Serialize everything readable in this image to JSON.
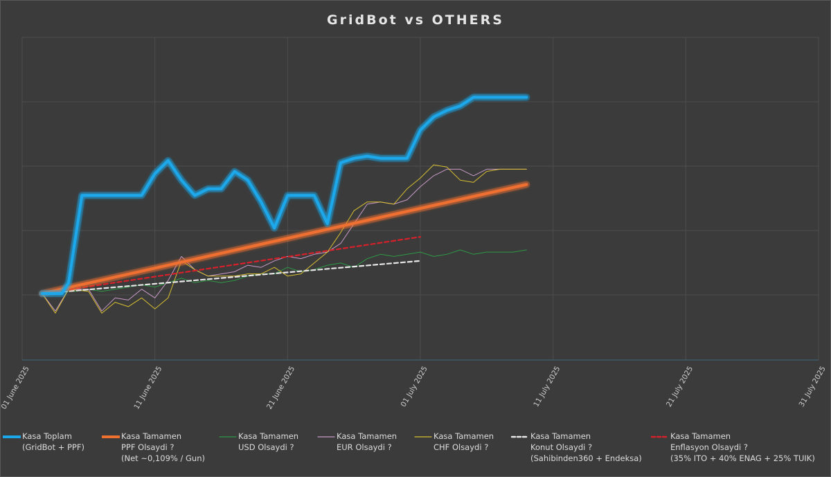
{
  "title": "GridBot   vs   OTHERS",
  "chart_data": {
    "type": "line",
    "x_ticks": [
      "01 June 2025",
      "11 June 2025",
      "21 June 2025",
      "01 July 2025",
      "11 July 2025",
      "21 July 2025",
      "31 July 2025"
    ],
    "x_range_days": [
      0,
      60
    ],
    "y_axis_labels_shown": false,
    "grid": true,
    "legend_position": "bottom",
    "series": [
      {
        "name": "Kasa Toplam",
        "legend_lines": [
          "Kasa Toplam",
          "(GridBot + PPF)"
        ],
        "color": "#1aa8ea",
        "style": "thick-glow",
        "x": [
          1.5,
          3,
          3.5,
          4.5,
          6,
          7,
          8,
          9,
          10,
          11,
          12,
          13,
          14,
          15,
          16,
          17,
          18,
          19,
          20,
          21,
          22,
          23,
          24,
          25,
          26,
          27,
          28,
          29,
          30,
          31,
          32,
          33,
          34,
          35,
          36,
          37,
          38
        ],
        "y": [
          0,
          0,
          0.5,
          4.5,
          4.5,
          4.5,
          4.5,
          4.5,
          5.5,
          6.1,
          5.2,
          4.5,
          4.8,
          4.8,
          5.6,
          5.2,
          4.2,
          3.0,
          4.5,
          4.5,
          4.5,
          3.2,
          6.0,
          6.2,
          6.3,
          6.2,
          6.2,
          6.2,
          7.5,
          8.1,
          8.4,
          8.6,
          9.0,
          9.0,
          9.0,
          9.0,
          9.0
        ]
      },
      {
        "name": "Kasa Tamamen PPF Olsaydi ?",
        "legend_lines": [
          "Kasa Tamamen",
          "PPF Olsaydi ?",
          "(Net ~0,109% / Gun)"
        ],
        "color": "#f07030",
        "style": "thick-glow",
        "x": [
          1.5,
          38
        ],
        "y": [
          0,
          5.0
        ]
      },
      {
        "name": "Kasa Tamamen USD Olsaydi ?",
        "legend_lines": [
          "Kasa Tamamen",
          "USD Olsaydi ?"
        ],
        "color": "#2e9a46",
        "style": "thin",
        "x": [
          1.5,
          3,
          4,
          5,
          6,
          7,
          8,
          9,
          10,
          11,
          12,
          13,
          14,
          15,
          16,
          17,
          18,
          19,
          20,
          21,
          22,
          23,
          24,
          25,
          26,
          27,
          28,
          29,
          30,
          31,
          32,
          33,
          34,
          35,
          36,
          37,
          38
        ],
        "y": [
          0,
          0.1,
          0.1,
          0.2,
          0.1,
          0.2,
          0.3,
          0.4,
          0.3,
          0.5,
          0.7,
          0.5,
          0.6,
          0.5,
          0.6,
          0.8,
          0.9,
          0.9,
          1.2,
          1.0,
          1.1,
          1.3,
          1.4,
          1.2,
          1.6,
          1.8,
          1.7,
          1.8,
          1.9,
          1.7,
          1.8,
          2.0,
          1.8,
          1.9,
          1.9,
          1.9,
          2.0
        ]
      },
      {
        "name": "Kasa Tamamen EUR Olsaydi ?",
        "legend_lines": [
          "Kasa Tamamen",
          "EUR Olsaydi ?"
        ],
        "color": "#c89ac8",
        "style": "thin",
        "x": [
          1.5,
          2.5,
          3.5,
          5,
          6,
          7,
          8,
          9,
          10,
          11,
          12,
          13,
          14,
          15,
          16,
          17,
          18,
          19,
          20,
          21,
          22,
          23,
          24,
          25,
          26,
          27,
          28,
          29,
          30,
          31,
          32,
          33,
          34,
          35,
          36,
          37,
          38
        ],
        "y": [
          0,
          -0.8,
          0.2,
          0.2,
          -0.8,
          -0.2,
          -0.3,
          0.2,
          -0.2,
          0.6,
          1.7,
          1.1,
          0.8,
          0.9,
          1.0,
          1.3,
          1.2,
          1.5,
          1.7,
          1.6,
          1.8,
          1.9,
          2.3,
          3.2,
          4.1,
          4.2,
          4.1,
          4.3,
          4.9,
          5.4,
          5.7,
          5.7,
          5.4,
          5.7,
          5.7,
          5.7,
          5.7
        ]
      },
      {
        "name": "Kasa Tamamen CHF Olsaydi ?",
        "legend_lines": [
          "Kasa Tamamen",
          "CHF Olsaydi ?"
        ],
        "color": "#d8c030",
        "style": "thin",
        "x": [
          1.5,
          2.5,
          3.5,
          5,
          6,
          7,
          8,
          9,
          10,
          11,
          12,
          13,
          14,
          15,
          16,
          17,
          18,
          19,
          20,
          21,
          22,
          23,
          24,
          25,
          26,
          27,
          28,
          29,
          30,
          31,
          32,
          33,
          34,
          35,
          36,
          37,
          38
        ],
        "y": [
          0,
          -0.9,
          0.2,
          0.1,
          -0.9,
          -0.4,
          -0.6,
          -0.2,
          -0.7,
          -0.2,
          1.5,
          1.1,
          0.8,
          0.8,
          0.8,
          0.9,
          0.9,
          1.2,
          0.8,
          0.9,
          1.4,
          1.9,
          2.8,
          3.8,
          4.2,
          4.2,
          4.1,
          4.8,
          5.3,
          5.9,
          5.8,
          5.2,
          5.1,
          5.6,
          5.7,
          5.7,
          5.7
        ]
      },
      {
        "name": "Kasa Tamamen Konut Olsaydi ?",
        "legend_lines": [
          "Kasa Tamamen",
          "Konut Olsaydi ?",
          "(Sahibinden360 + Endeksa)"
        ],
        "color": "#e8e8e8",
        "style": "dashed",
        "x": [
          1.5,
          30
        ],
        "y": [
          0,
          1.5
        ]
      },
      {
        "name": "Kasa Tamamen Enflasyon Olsaydi ?",
        "legend_lines": [
          "Kasa Tamamen",
          "Enflasyon Olsaydi ?",
          "(35% ITO + 40% ENAG + 25% TUIK)"
        ],
        "color": "#d8202a",
        "style": "dashed",
        "x": [
          1.5,
          30
        ],
        "y": [
          0,
          2.6
        ]
      }
    ]
  }
}
